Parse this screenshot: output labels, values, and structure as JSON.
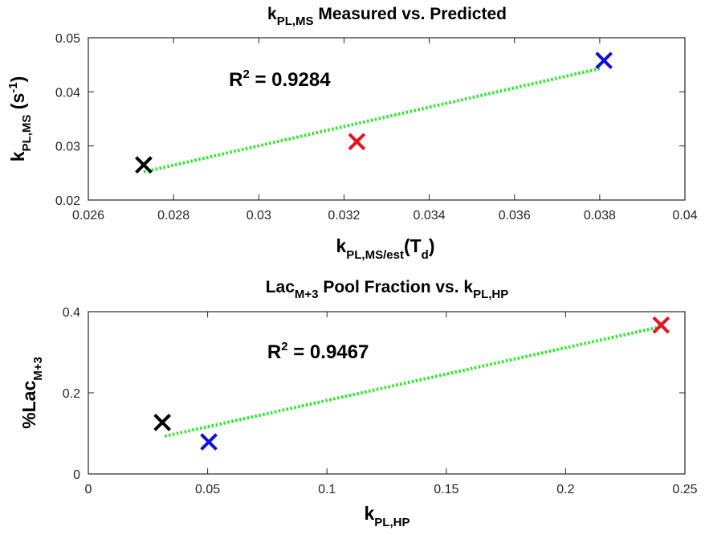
{
  "chart_data": [
    {
      "type": "scatter",
      "title": {
        "main": "k",
        "sub": "PL,MS",
        "rest": " Measured vs. Predicted"
      },
      "xlabel": {
        "main": "k",
        "sub": "PL,MS/est",
        "rest": "(T",
        "sub2": "d",
        "rest2": ")"
      },
      "ylabel": {
        "main": "k",
        "sub": "PL,MS",
        "rest": " (s",
        "sup": "-1",
        "rest2": ")"
      },
      "xlim": [
        0.026,
        0.04
      ],
      "ylim": [
        0.02,
        0.05
      ],
      "xticks": [
        0.026,
        0.028,
        0.03,
        0.032,
        0.034,
        0.036,
        0.038,
        0.04
      ],
      "xtick_labels": [
        "0.026",
        "0.028",
        "0.03",
        "0.032",
        "0.034",
        "0.036",
        "0.038",
        "0.04"
      ],
      "yticks": [
        0.02,
        0.03,
        0.04,
        0.05
      ],
      "ytick_labels": [
        "0.02",
        "0.03",
        "0.04",
        "0.05"
      ],
      "points": [
        {
          "x": 0.0273,
          "y": 0.0265,
          "color": "#000000"
        },
        {
          "x": 0.0323,
          "y": 0.0308,
          "color": "#e8131a"
        },
        {
          "x": 0.0381,
          "y": 0.0458,
          "color": "#1010d8"
        }
      ],
      "fit": {
        "x": [
          0.0273,
          0.038
        ],
        "y": [
          0.0252,
          0.0443
        ],
        "color": "#22ee22",
        "style": "dotted"
      },
      "annotation": {
        "label": "R",
        "sup": "2",
        "value": " = 0.9284",
        "x": 0.0293,
        "y": 0.0411
      }
    },
    {
      "type": "scatter",
      "title": {
        "main": "Lac",
        "sub": "M+3",
        "rest": " Pool Fraction vs. k",
        "sub2": "PL,HP"
      },
      "xlabel": {
        "main": "k",
        "sub": "PL,HP"
      },
      "ylabel": {
        "main": "%Lac",
        "sub": "M+3"
      },
      "xlim": [
        0,
        0.25
      ],
      "ylim": [
        0,
        0.4
      ],
      "xticks": [
        0,
        0.05,
        0.1,
        0.15,
        0.2,
        0.25
      ],
      "xtick_labels": [
        "0",
        "0.05",
        "0.1",
        "0.15",
        "0.2",
        "0.25"
      ],
      "yticks": [
        0,
        0.2,
        0.4
      ],
      "ytick_labels": [
        "0",
        "0.2",
        "0.4"
      ],
      "points": [
        {
          "x": 0.031,
          "y": 0.127,
          "color": "#000000"
        },
        {
          "x": 0.0505,
          "y": 0.079,
          "color": "#1010d8"
        },
        {
          "x": 0.24,
          "y": 0.367,
          "color": "#e8131a"
        }
      ],
      "fit": {
        "x": [
          0.032,
          0.24
        ],
        "y": [
          0.093,
          0.363
        ],
        "color": "#22ee22",
        "style": "dotted"
      },
      "annotation": {
        "label": "R",
        "sup": "2",
        "value": " = 0.9467",
        "x": 0.075,
        "y": 0.285
      }
    }
  ]
}
